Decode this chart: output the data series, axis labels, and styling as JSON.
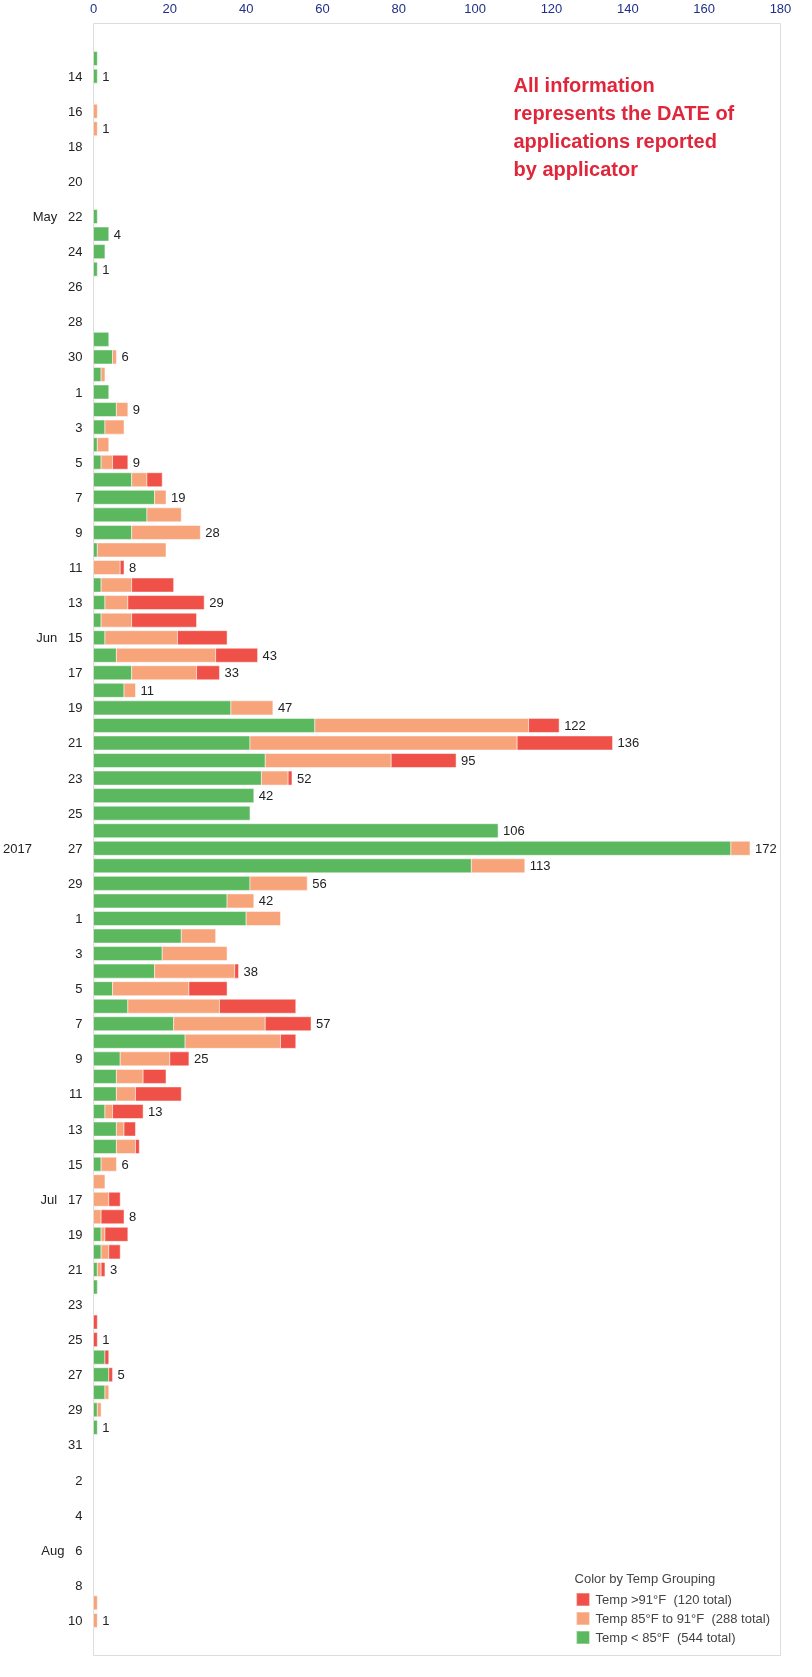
{
  "chart_data": {
    "type": "bar",
    "orientation": "horizontal",
    "stacked": true,
    "x": [
      "2017-05-13",
      "2017-05-14",
      "2017-05-15",
      "2017-05-16",
      "2017-05-17",
      "2017-05-18",
      "2017-05-19",
      "2017-05-20",
      "2017-05-21",
      "2017-05-22",
      "2017-05-23",
      "2017-05-24",
      "2017-05-25",
      "2017-05-26",
      "2017-05-27",
      "2017-05-28",
      "2017-05-29",
      "2017-05-30",
      "2017-05-31",
      "2017-06-01",
      "2017-06-02",
      "2017-06-03",
      "2017-06-04",
      "2017-06-05",
      "2017-06-06",
      "2017-06-07",
      "2017-06-08",
      "2017-06-09",
      "2017-06-10",
      "2017-06-11",
      "2017-06-12",
      "2017-06-13",
      "2017-06-14",
      "2017-06-15",
      "2017-06-16",
      "2017-06-17",
      "2017-06-18",
      "2017-06-19",
      "2017-06-20",
      "2017-06-21",
      "2017-06-22",
      "2017-06-23",
      "2017-06-24",
      "2017-06-25",
      "2017-06-26",
      "2017-06-27",
      "2017-06-28",
      "2017-06-29",
      "2017-06-30",
      "2017-07-01",
      "2017-07-02",
      "2017-07-03",
      "2017-07-04",
      "2017-07-05",
      "2017-07-06",
      "2017-07-07",
      "2017-07-08",
      "2017-07-09",
      "2017-07-10",
      "2017-07-11",
      "2017-07-12",
      "2017-07-13",
      "2017-07-14",
      "2017-07-15",
      "2017-07-16",
      "2017-07-17",
      "2017-07-18",
      "2017-07-19",
      "2017-07-20",
      "2017-07-21",
      "2017-07-22",
      "2017-07-23",
      "2017-07-24",
      "2017-07-25",
      "2017-07-26",
      "2017-07-27",
      "2017-07-28",
      "2017-07-29",
      "2017-07-30",
      "2017-07-31",
      "2017-08-01",
      "2017-08-02",
      "2017-08-03",
      "2017-08-04",
      "2017-08-05",
      "2017-08-06",
      "2017-08-07",
      "2017-08-08",
      "2017-08-09",
      "2017-08-10"
    ],
    "series": [
      {
        "name": "Temp < 85°F  (544 total)",
        "color": "#5cb85f",
        "values": [
          1,
          1,
          null,
          null,
          null,
          null,
          null,
          null,
          null,
          1,
          4,
          3,
          1,
          null,
          null,
          null,
          4,
          5,
          2,
          4,
          6,
          3,
          1,
          2,
          10,
          16,
          14,
          10,
          1,
          null,
          2,
          3,
          2,
          3,
          6,
          10,
          8,
          36,
          58,
          41,
          45,
          44,
          42,
          41,
          106,
          167,
          99,
          41,
          35,
          40,
          23,
          18,
          16,
          5,
          9,
          21,
          24,
          7,
          6,
          6,
          3,
          6,
          6,
          2,
          null,
          null,
          null,
          2,
          2,
          1,
          1,
          null,
          null,
          null,
          3,
          4,
          3,
          1,
          1,
          null,
          null,
          null,
          null,
          null,
          null,
          null,
          null,
          null,
          null,
          null
        ]
      },
      {
        "name": "Temp 85°F to 91°F  (288 total)",
        "color": "#f7a47b",
        "values": [
          null,
          null,
          null,
          1,
          1,
          null,
          null,
          null,
          null,
          null,
          null,
          null,
          null,
          null,
          null,
          null,
          null,
          1,
          1,
          null,
          3,
          5,
          3,
          3,
          4,
          3,
          9,
          18,
          18,
          7,
          8,
          6,
          8,
          19,
          26,
          17,
          3,
          11,
          56,
          70,
          33,
          7,
          null,
          null,
          null,
          5,
          14,
          15,
          7,
          9,
          9,
          17,
          21,
          20,
          24,
          24,
          25,
          13,
          7,
          5,
          2,
          2,
          5,
          4,
          3,
          4,
          2,
          1,
          2,
          1,
          null,
          null,
          null,
          null,
          null,
          null,
          1,
          1,
          null,
          null,
          null,
          null,
          null,
          null,
          null,
          null,
          null,
          null,
          1,
          1
        ]
      },
      {
        "name": "Temp >91°F  (120 total)",
        "color": "#ef5047",
        "values": [
          null,
          null,
          null,
          null,
          null,
          null,
          null,
          null,
          null,
          null,
          null,
          null,
          null,
          null,
          null,
          null,
          null,
          null,
          null,
          null,
          null,
          null,
          null,
          4,
          4,
          null,
          null,
          null,
          null,
          1,
          11,
          20,
          17,
          13,
          11,
          6,
          null,
          null,
          8,
          25,
          17,
          1,
          null,
          null,
          null,
          null,
          null,
          null,
          null,
          null,
          null,
          null,
          1,
          10,
          20,
          12,
          4,
          5,
          6,
          12,
          8,
          3,
          1,
          null,
          null,
          3,
          6,
          6,
          3,
          1,
          null,
          null,
          1,
          1,
          1,
          1,
          null,
          null,
          null,
          null,
          null,
          null,
          null,
          null,
          null,
          null,
          null,
          null,
          null,
          null
        ]
      }
    ],
    "totals": [
      null,
      "1",
      null,
      null,
      "1",
      null,
      null,
      null,
      null,
      null,
      "4",
      null,
      "1",
      null,
      null,
      null,
      null,
      "6",
      null,
      null,
      "9",
      null,
      null,
      "9",
      null,
      "19",
      null,
      "28",
      null,
      "8",
      null,
      "29",
      null,
      null,
      "43",
      "33",
      "11",
      "47",
      "122",
      "136",
      "95",
      "52",
      "42",
      null,
      "106",
      "172",
      "113",
      "56",
      "42",
      null,
      null,
      null,
      "38",
      null,
      null,
      "57",
      null,
      "25",
      null,
      null,
      "13",
      null,
      null,
      "6",
      null,
      null,
      "8",
      null,
      null,
      "3",
      null,
      null,
      null,
      "1",
      null,
      "5",
      null,
      null,
      "1",
      null,
      null,
      null,
      null,
      null,
      null,
      null,
      null,
      null,
      null,
      "1"
    ],
    "xlim": [
      0,
      180
    ],
    "xticks": [
      0,
      20,
      40,
      60,
      80,
      100,
      120,
      140,
      160,
      180
    ],
    "ylim": [
      "2017-08-12",
      "2017-05-11"
    ],
    "yticks": [
      {
        "value": "2017-05-14",
        "label": "14"
      },
      {
        "value": "2017-05-16",
        "label": "16"
      },
      {
        "value": "2017-05-18",
        "label": "18"
      },
      {
        "value": "2017-05-20",
        "label": "20"
      },
      {
        "value": "2017-05-22",
        "label": "May   22"
      },
      {
        "value": "2017-05-24",
        "label": "24"
      },
      {
        "value": "2017-05-26",
        "label": "26"
      },
      {
        "value": "2017-05-28",
        "label": "28"
      },
      {
        "value": "2017-05-30",
        "label": "30"
      },
      {
        "value": "2017-06-01",
        "label": "1"
      },
      {
        "value": "2017-06-03",
        "label": "3"
      },
      {
        "value": "2017-06-05",
        "label": "5"
      },
      {
        "value": "2017-06-07",
        "label": "7"
      },
      {
        "value": "2017-06-09",
        "label": "9"
      },
      {
        "value": "2017-06-11",
        "label": "11"
      },
      {
        "value": "2017-06-13",
        "label": "13"
      },
      {
        "value": "2017-06-15",
        "label": "Jun   15"
      },
      {
        "value": "2017-06-17",
        "label": "17"
      },
      {
        "value": "2017-06-19",
        "label": "19"
      },
      {
        "value": "2017-06-21",
        "label": "21"
      },
      {
        "value": "2017-06-23",
        "label": "23"
      },
      {
        "value": "2017-06-25",
        "label": "25"
      },
      {
        "value": "2017-06-27",
        "label": "2017          27"
      },
      {
        "value": "2017-06-29",
        "label": "29"
      },
      {
        "value": "2017-07-01",
        "label": "1"
      },
      {
        "value": "2017-07-03",
        "label": "3"
      },
      {
        "value": "2017-07-05",
        "label": "5"
      },
      {
        "value": "2017-07-07",
        "label": "7"
      },
      {
        "value": "2017-07-09",
        "label": "9"
      },
      {
        "value": "2017-07-11",
        "label": "11"
      },
      {
        "value": "2017-07-13",
        "label": "13"
      },
      {
        "value": "2017-07-15",
        "label": "15"
      },
      {
        "value": "2017-07-17",
        "label": "Jul   17"
      },
      {
        "value": "2017-07-19",
        "label": "19"
      },
      {
        "value": "2017-07-21",
        "label": "21"
      },
      {
        "value": "2017-07-23",
        "label": "23"
      },
      {
        "value": "2017-07-25",
        "label": "25"
      },
      {
        "value": "2017-07-27",
        "label": "27"
      },
      {
        "value": "2017-07-29",
        "label": "29"
      },
      {
        "value": "2017-07-31",
        "label": "31"
      },
      {
        "value": "2017-08-02",
        "label": "2"
      },
      {
        "value": "2017-08-04",
        "label": "4"
      },
      {
        "value": "2017-08-06",
        "label": "Aug   6"
      },
      {
        "value": "2017-08-08",
        "label": "8"
      },
      {
        "value": "2017-08-10",
        "label": "10"
      }
    ],
    "annotations": [
      "All information represents the DATE of applications reported by applicator"
    ],
    "legend_title": "Color by Temp Grouping",
    "legend": "bottom right",
    "grid": false
  }
}
